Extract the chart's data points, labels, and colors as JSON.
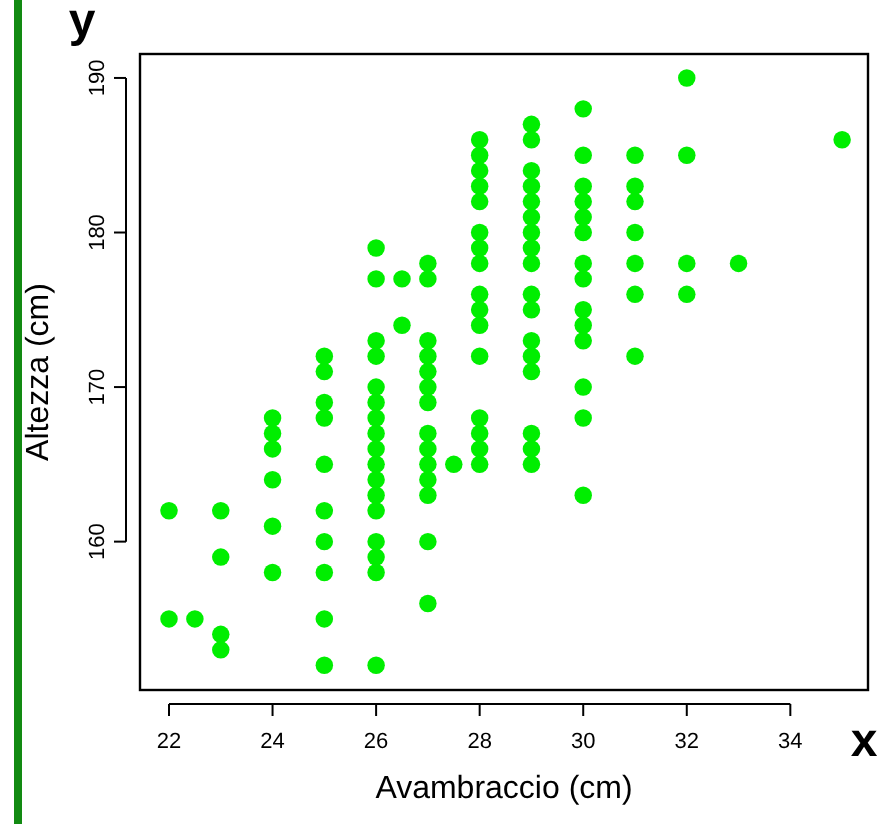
{
  "chart_data": {
    "type": "scatter",
    "xlabel": "Avambraccio (cm)",
    "ylabel": "Altezza (cm)",
    "annotations": [
      "y",
      "x"
    ],
    "marker": "circle",
    "grid": false,
    "xlim": [
      21.44,
      35.5
    ],
    "ylim": [
      150.4,
      191.55
    ],
    "xticks": [
      22,
      24,
      26,
      28,
      30,
      32,
      34
    ],
    "yticks": [
      160,
      170,
      180,
      190
    ],
    "series": [
      {
        "color": "#00ee00",
        "x": [
          22,
          22,
          22.5,
          23,
          23,
          23,
          23,
          24,
          24,
          24,
          24,
          24,
          24,
          25,
          25,
          25,
          25,
          25,
          25,
          25,
          25,
          25,
          25,
          26,
          26,
          26,
          26,
          26,
          26,
          26,
          26,
          26,
          26,
          26,
          26,
          26,
          26,
          26,
          26,
          26,
          26.5,
          26.5,
          27,
          27,
          27,
          27,
          27,
          27,
          27,
          27,
          27,
          27,
          27,
          27,
          27,
          27,
          27.5,
          28,
          28,
          28,
          28,
          28,
          28,
          28,
          28,
          28,
          28,
          28,
          28,
          28,
          28,
          28,
          28,
          29,
          29,
          29,
          29,
          29,
          29,
          29,
          29,
          29,
          29,
          29,
          29,
          29,
          29,
          29,
          29,
          29,
          30,
          30,
          30,
          30,
          30,
          30,
          30,
          30,
          30,
          30,
          30,
          30,
          30,
          30,
          31,
          31,
          31,
          31,
          31,
          31,
          31,
          32,
          32,
          32,
          32,
          33,
          35
        ],
        "values": [
          162,
          155,
          155,
          162,
          159,
          154,
          153,
          168,
          167,
          166,
          164,
          161,
          158,
          172,
          171,
          169,
          168,
          165,
          162,
          160,
          158,
          155,
          152,
          179,
          177,
          173,
          172,
          170,
          169,
          168,
          167,
          166,
          165,
          164,
          163,
          162,
          160,
          159,
          158,
          152,
          177,
          174,
          178,
          177,
          173,
          172,
          171,
          170,
          169,
          167,
          166,
          165,
          164,
          163,
          160,
          156,
          165,
          186,
          185,
          184,
          183,
          182,
          180,
          179,
          178,
          176,
          175,
          174,
          172,
          168,
          167,
          166,
          165,
          187,
          186,
          184,
          183,
          182,
          181,
          180,
          179,
          178,
          176,
          175,
          173,
          172,
          171,
          167,
          166,
          165,
          188,
          185,
          183,
          182,
          181,
          180,
          178,
          177,
          175,
          174,
          173,
          170,
          168,
          163,
          185,
          183,
          182,
          180,
          178,
          176,
          172,
          190,
          185,
          178,
          176,
          178,
          186
        ]
      }
    ]
  }
}
